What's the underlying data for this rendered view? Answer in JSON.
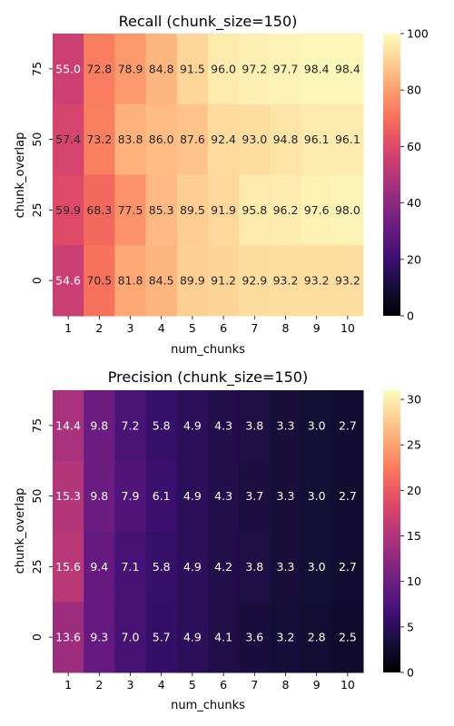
{
  "chart_data": [
    {
      "type": "heatmap",
      "title": "Recall (chunk_size=150)",
      "xlabel": "num_chunks",
      "ylabel": "chunk_overlap",
      "x": [
        "1",
        "2",
        "3",
        "4",
        "5",
        "6",
        "7",
        "8",
        "9",
        "10"
      ],
      "y": [
        "75",
        "50",
        "25",
        "0"
      ],
      "values": [
        [
          55.0,
          72.8,
          78.9,
          84.8,
          91.5,
          96.0,
          97.2,
          97.7,
          98.4,
          98.4
        ],
        [
          57.4,
          73.2,
          83.8,
          86.0,
          87.6,
          92.4,
          93.0,
          94.8,
          96.1,
          96.1
        ],
        [
          59.9,
          68.3,
          77.5,
          85.3,
          89.5,
          91.9,
          95.8,
          96.2,
          97.6,
          98.0
        ],
        [
          54.6,
          70.5,
          81.8,
          84.5,
          89.9,
          91.2,
          92.9,
          93.2,
          93.2,
          93.2
        ]
      ],
      "colorbar": {
        "min": 0,
        "max": 100,
        "ticks": [
          "0",
          "20",
          "40",
          "60",
          "80",
          "100"
        ]
      },
      "colormap": "magma"
    },
    {
      "type": "heatmap",
      "title": "Precision (chunk_size=150)",
      "xlabel": "num_chunks",
      "ylabel": "chunk_overlap",
      "x": [
        "1",
        "2",
        "3",
        "4",
        "5",
        "6",
        "7",
        "8",
        "9",
        "10"
      ],
      "y": [
        "75",
        "50",
        "25",
        "0"
      ],
      "values": [
        [
          14.4,
          9.8,
          7.2,
          5.8,
          4.9,
          4.3,
          3.8,
          3.3,
          3.0,
          2.7
        ],
        [
          15.3,
          9.8,
          7.9,
          6.1,
          4.9,
          4.3,
          3.7,
          3.3,
          3.0,
          2.7
        ],
        [
          15.6,
          9.4,
          7.1,
          5.8,
          4.9,
          4.2,
          3.8,
          3.3,
          3.0,
          2.7
        ],
        [
          13.6,
          9.3,
          7.0,
          5.7,
          4.9,
          4.1,
          3.6,
          3.2,
          2.8,
          2.5
        ]
      ],
      "colorbar": {
        "min": 0,
        "max": 31,
        "ticks": [
          "0",
          "5",
          "10",
          "15",
          "20",
          "25",
          "30"
        ]
      },
      "colormap": "magma"
    }
  ]
}
